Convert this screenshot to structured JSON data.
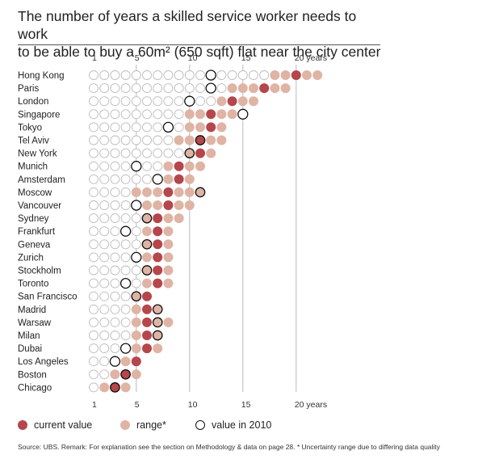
{
  "title_lines": [
    "The number of years a skilled service worker needs to work",
    "to be able to buy a 60m² (650 sqft) flat near the city center"
  ],
  "legend": {
    "current": "current value",
    "range": "range*",
    "past": "value in 2010"
  },
  "source": "Source: UBS.  Remark: For explanation see the section on Methodology & data on page 28.    * Uncertainty range due to differing data quality",
  "colors": {
    "current": "#b5464b",
    "range": "#dfb4a5",
    "empty_stroke": "#bcbcbc",
    "ring": "#111111",
    "grid": "#bbbbbb"
  },
  "chart_data": {
    "type": "dot-range",
    "title": "The number of years a skilled service worker needs to work to be able to buy a 60m² (650 sqft) flat near the city center",
    "x_ticks": [
      {
        "value": 1,
        "label": "1"
      },
      {
        "value": 5,
        "label": "5"
      },
      {
        "value": 10,
        "label": "10"
      },
      {
        "value": 15,
        "label": "15"
      },
      {
        "value": 20,
        "label": "20 years"
      }
    ],
    "x_range": [
      1,
      22
    ],
    "cities": [
      {
        "name": "Hong Kong",
        "current": 20,
        "range": [
          18,
          22
        ],
        "y2010": 12
      },
      {
        "name": "Paris",
        "current": 17,
        "range": [
          14,
          19
        ],
        "y2010": 12
      },
      {
        "name": "London",
        "current": 14,
        "range": [
          13,
          16
        ],
        "y2010": 10
      },
      {
        "name": "Singapore",
        "current": 12,
        "range": [
          10,
          14
        ],
        "y2010": 15
      },
      {
        "name": "Tokyo",
        "current": 12,
        "range": [
          10,
          13
        ],
        "y2010": 8
      },
      {
        "name": "Tel Aviv",
        "current": 11,
        "range": [
          9,
          13
        ],
        "y2010": 11
      },
      {
        "name": "New York",
        "current": 11,
        "range": [
          10,
          12
        ],
        "y2010": 10
      },
      {
        "name": "Munich",
        "current": 9,
        "range": [
          8,
          11
        ],
        "y2010": 5
      },
      {
        "name": "Amsterdam",
        "current": 9,
        "range": [
          8,
          10
        ],
        "y2010": 7
      },
      {
        "name": "Moscow",
        "current": 8,
        "range": [
          5,
          11
        ],
        "y2010": 11
      },
      {
        "name": "Vancouver",
        "current": 8,
        "range": [
          6,
          10
        ],
        "y2010": 5
      },
      {
        "name": "Sydney",
        "current": 7,
        "range": [
          6,
          9
        ],
        "y2010": 6
      },
      {
        "name": "Frankfurt",
        "current": 7,
        "range": [
          6,
          8
        ],
        "y2010": 4
      },
      {
        "name": "Geneva",
        "current": 7,
        "range": [
          6,
          8
        ],
        "y2010": 6
      },
      {
        "name": "Zurich",
        "current": 7,
        "range": [
          6,
          8
        ],
        "y2010": 5
      },
      {
        "name": "Stockholm",
        "current": 7,
        "range": [
          6,
          8
        ],
        "y2010": 6
      },
      {
        "name": "Toronto",
        "current": 7,
        "range": [
          6,
          8
        ],
        "y2010": 4
      },
      {
        "name": "San Francisco",
        "current": 6,
        "range": [
          5,
          6
        ],
        "y2010": 5
      },
      {
        "name": "Madrid",
        "current": 6,
        "range": [
          5,
          7
        ],
        "y2010": 7
      },
      {
        "name": "Warsaw",
        "current": 6,
        "range": [
          5,
          8
        ],
        "y2010": 7
      },
      {
        "name": "Milan",
        "current": 6,
        "range": [
          5,
          7
        ],
        "y2010": 7
      },
      {
        "name": "Dubai",
        "current": 6,
        "range": [
          5,
          7
        ],
        "y2010": 4
      },
      {
        "name": "Los Angeles",
        "current": 5,
        "range": [
          4,
          5
        ],
        "y2010": 3
      },
      {
        "name": "Boston",
        "current": 4,
        "range": [
          3,
          5
        ],
        "y2010": 4
      },
      {
        "name": "Chicago",
        "current": 3,
        "range": [
          2,
          4
        ],
        "y2010": 3
      }
    ]
  }
}
